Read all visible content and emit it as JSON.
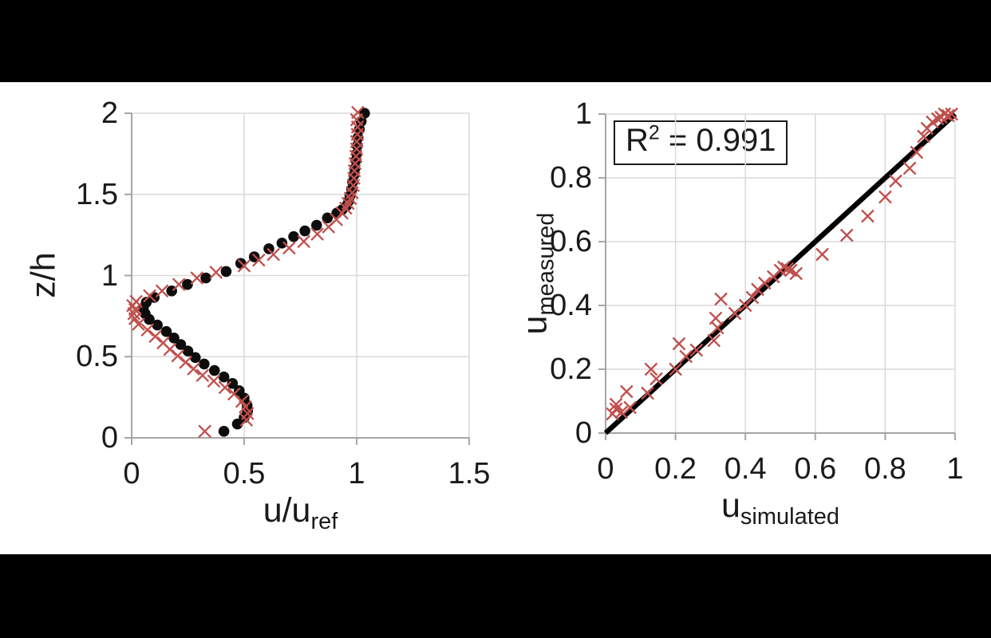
{
  "figure": {
    "background": "#ffffff",
    "band_color": "#000000",
    "grid_color": "#dadada",
    "axis_color": "#a6a6a6",
    "text_color": "#1a1a1a"
  },
  "chart_data": [
    {
      "id": "profile",
      "type": "scatter",
      "title": "",
      "xlabel": {
        "main": "u/u",
        "sub": "ref"
      },
      "ylabel": {
        "main": "z/h",
        "sub": ""
      },
      "xlim": [
        0,
        1.5
      ],
      "ylim": [
        0,
        2
      ],
      "xticks": [
        0,
        0.5,
        1,
        1.5
      ],
      "xtick_labels": [
        "0",
        "0.5",
        "1",
        "1.5"
      ],
      "yticks": [
        0,
        0.5,
        1,
        1.5,
        2
      ],
      "ytick_labels": [
        "0",
        "0.5",
        "1",
        "1.5",
        "2"
      ],
      "grid": true,
      "legend": null,
      "series": [
        {
          "name": "simulated",
          "marker": "circle",
          "color": "#0d0d0d",
          "points": [
            [
              0.41,
              0.04
            ],
            [
              0.47,
              0.085
            ],
            [
              0.5,
              0.125
            ],
            [
              0.515,
              0.165
            ],
            [
              0.513,
              0.2
            ],
            [
              0.5,
              0.245
            ],
            [
              0.478,
              0.29
            ],
            [
              0.448,
              0.335
            ],
            [
              0.41,
              0.375
            ],
            [
              0.368,
              0.415
            ],
            [
              0.322,
              0.455
            ],
            [
              0.283,
              0.495
            ],
            [
              0.25,
              0.535
            ],
            [
              0.218,
              0.575
            ],
            [
              0.188,
              0.615
            ],
            [
              0.154,
              0.655
            ],
            [
              0.114,
              0.695
            ],
            [
              0.078,
              0.73
            ],
            [
              0.06,
              0.765
            ],
            [
              0.052,
              0.8
            ],
            [
              0.065,
              0.835
            ],
            [
              0.1,
              0.865
            ],
            [
              0.178,
              0.905
            ],
            [
              0.248,
              0.945
            ],
            [
              0.33,
              0.985
            ],
            [
              0.42,
              1.025
            ],
            [
              0.485,
              1.075
            ],
            [
              0.545,
              1.115
            ],
            [
              0.61,
              1.165
            ],
            [
              0.668,
              1.2
            ],
            [
              0.72,
              1.24
            ],
            [
              0.77,
              1.275
            ],
            [
              0.822,
              1.31
            ],
            [
              0.87,
              1.355
            ],
            [
              0.912,
              1.385
            ],
            [
              0.935,
              1.405
            ],
            [
              0.955,
              1.43
            ],
            [
              0.965,
              1.46
            ],
            [
              0.97,
              1.49
            ],
            [
              0.978,
              1.53
            ],
            [
              0.982,
              1.575
            ],
            [
              0.988,
              1.62
            ],
            [
              0.992,
              1.66
            ],
            [
              0.997,
              1.71
            ],
            [
              1.0,
              1.75
            ],
            [
              1.003,
              1.8
            ],
            [
              1.006,
              1.85
            ],
            [
              1.012,
              1.9
            ],
            [
              1.02,
              1.95
            ],
            [
              1.035,
              2.0
            ]
          ]
        },
        {
          "name": "measured",
          "marker": "x",
          "color": "#c0504d",
          "points": [
            [
              0.325,
              0.04
            ],
            [
              0.51,
              0.11
            ],
            [
              0.515,
              0.15
            ],
            [
              0.505,
              0.19
            ],
            [
              0.49,
              0.225
            ],
            [
              0.455,
              0.27
            ],
            [
              0.415,
              0.31
            ],
            [
              0.365,
              0.35
            ],
            [
              0.315,
              0.385
            ],
            [
              0.275,
              0.425
            ],
            [
              0.24,
              0.465
            ],
            [
              0.205,
              0.505
            ],
            [
              0.17,
              0.545
            ],
            [
              0.14,
              0.585
            ],
            [
              0.105,
              0.625
            ],
            [
              0.07,
              0.665
            ],
            [
              0.03,
              0.7
            ],
            [
              0.015,
              0.735
            ],
            [
              0.01,
              0.765
            ],
            [
              0.015,
              0.79
            ],
            [
              0.005,
              0.815
            ],
            [
              0.02,
              0.84
            ],
            [
              0.08,
              0.875
            ],
            [
              0.135,
              0.905
            ],
            [
              0.21,
              0.945
            ],
            [
              0.29,
              0.985
            ],
            [
              0.375,
              1.02
            ],
            [
              0.5,
              1.06
            ],
            [
              0.565,
              1.095
            ],
            [
              0.63,
              1.13
            ],
            [
              0.7,
              1.17
            ],
            [
              0.765,
              1.21
            ],
            [
              0.825,
              1.255
            ],
            [
              0.875,
              1.3
            ],
            [
              0.91,
              1.345
            ],
            [
              0.935,
              1.385
            ],
            [
              0.952,
              1.415
            ],
            [
              0.962,
              1.445
            ],
            [
              0.972,
              1.475
            ],
            [
              0.98,
              1.51
            ],
            [
              0.985,
              1.555
            ],
            [
              0.988,
              1.6
            ],
            [
              0.99,
              1.645
            ],
            [
              0.993,
              1.69
            ],
            [
              0.997,
              1.735
            ],
            [
              1.0,
              1.78
            ],
            [
              1.0,
              1.825
            ],
            [
              1.003,
              1.87
            ],
            [
              1.004,
              1.915
            ],
            [
              1.0,
              1.96
            ],
            [
              1.005,
              2.005
            ]
          ]
        }
      ]
    },
    {
      "id": "correlation",
      "type": "scatter",
      "title": "",
      "xlabel": {
        "main": "u",
        "sub": "simulated"
      },
      "ylabel": {
        "main": "u",
        "sub": "measured"
      },
      "xlim": [
        0,
        1
      ],
      "ylim": [
        0,
        1
      ],
      "xticks": [
        0,
        0.2,
        0.4,
        0.6,
        0.8,
        1
      ],
      "xtick_labels": [
        "0",
        "0.2",
        "0.4",
        "0.6",
        "0.8",
        "1"
      ],
      "yticks": [
        0,
        0.2,
        0.4,
        0.6,
        0.8,
        1
      ],
      "ytick_labels": [
        "0",
        "0.2",
        "0.4",
        "0.6",
        "0.8",
        "1"
      ],
      "grid": true,
      "legend": null,
      "annotation": {
        "base": "R",
        "sup": "2",
        "rest": " = 0.991",
        "r_squared": 0.991
      },
      "line": {
        "name": "one-to-one-line",
        "color": "#000000",
        "from": [
          0,
          0
        ],
        "to": [
          1,
          1
        ]
      },
      "series": [
        {
          "name": "measured vs simulated",
          "marker": "x",
          "color": "#c0504d",
          "points": [
            [
              0.02,
              0.06
            ],
            [
              0.03,
              0.075
            ],
            [
              0.03,
              0.09
            ],
            [
              0.045,
              0.065
            ],
            [
              0.06,
              0.13
            ],
            [
              0.07,
              0.08
            ],
            [
              0.12,
              0.125
            ],
            [
              0.13,
              0.2
            ],
            [
              0.145,
              0.17
            ],
            [
              0.2,
              0.2
            ],
            [
              0.21,
              0.28
            ],
            [
              0.23,
              0.24
            ],
            [
              0.26,
              0.26
            ],
            [
              0.31,
              0.29
            ],
            [
              0.315,
              0.36
            ],
            [
              0.32,
              0.33
            ],
            [
              0.33,
              0.42
            ],
            [
              0.37,
              0.375
            ],
            [
              0.4,
              0.4
            ],
            [
              0.42,
              0.425
            ],
            [
              0.435,
              0.45
            ],
            [
              0.455,
              0.47
            ],
            [
              0.48,
              0.49
            ],
            [
              0.5,
              0.51
            ],
            [
              0.51,
              0.52
            ],
            [
              0.52,
              0.515
            ],
            [
              0.53,
              0.51
            ],
            [
              0.545,
              0.5
            ],
            [
              0.62,
              0.56
            ],
            [
              0.69,
              0.62
            ],
            [
              0.75,
              0.68
            ],
            [
              0.8,
              0.74
            ],
            [
              0.83,
              0.79
            ],
            [
              0.87,
              0.83
            ],
            [
              0.89,
              0.88
            ],
            [
              0.91,
              0.93
            ],
            [
              0.92,
              0.955
            ],
            [
              0.935,
              0.975
            ],
            [
              0.95,
              0.985
            ],
            [
              0.96,
              0.99
            ],
            [
              0.97,
              1.0
            ],
            [
              0.98,
              0.995
            ],
            [
              0.99,
              1.0
            ]
          ]
        }
      ]
    }
  ]
}
